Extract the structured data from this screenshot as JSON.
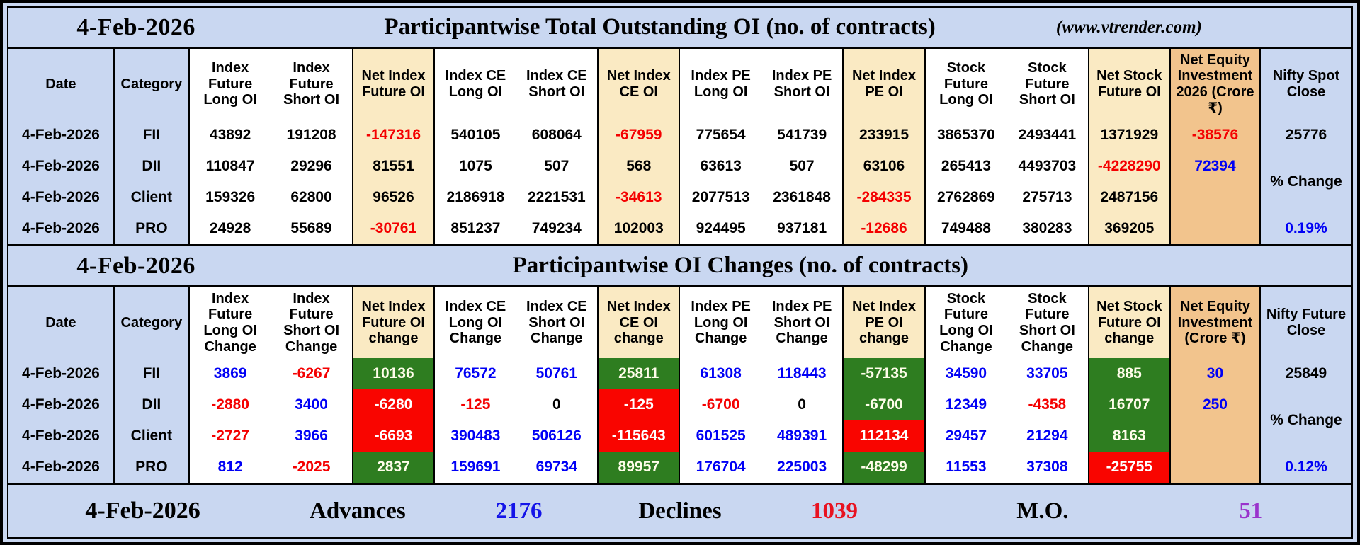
{
  "colors": {
    "page_background": "#c9d7f1",
    "net_column_bg": "#faeac3",
    "equity_column_bg": "#f2c48d",
    "positive_cell_bg": "#2e7d20",
    "negative_cell_bg": "#f90500",
    "negative_text": "#f40000",
    "positive_text": "#0000f5",
    "mo_text": "#9a33cc"
  },
  "header": {
    "date": "4-Feb-2026",
    "title": "Participantwise Total Outstanding OI (no. of contracts)",
    "site": "(www.vtrender.com)"
  },
  "table1": {
    "columns": [
      {
        "label": "Date",
        "type": "head"
      },
      {
        "label": "Category",
        "type": "head"
      },
      {
        "label": "Index Future Long OI",
        "type": "plain"
      },
      {
        "label": "Index Future Short OI",
        "type": "plain"
      },
      {
        "label": "Net Index Future OI",
        "type": "net"
      },
      {
        "label": "Index CE Long OI",
        "type": "plain"
      },
      {
        "label": "Index CE Short OI",
        "type": "plain"
      },
      {
        "label": "Net Index CE OI",
        "type": "net"
      },
      {
        "label": "Index PE Long OI",
        "type": "plain"
      },
      {
        "label": "Index PE Short OI",
        "type": "plain"
      },
      {
        "label": "Net Index PE OI",
        "type": "net"
      },
      {
        "label": "Stock Future Long OI",
        "type": "plain"
      },
      {
        "label": "Stock Future Short OI",
        "type": "plain"
      },
      {
        "label": "Net Stock Future OI",
        "type": "net"
      },
      {
        "label": "Net Equity Investment 2026 (Crore ₹)",
        "type": "equity"
      },
      {
        "label": "Nifty Spot Close",
        "type": "nifty"
      }
    ],
    "rows": [
      {
        "date": "4-Feb-2026",
        "category": "FII",
        "values": [
          "43892",
          "191208",
          "-147316",
          "540105",
          "608064",
          "-67959",
          "775654",
          "541739",
          "233915",
          "3865370",
          "2493441",
          "1371929"
        ],
        "styles": [
          "k",
          "k",
          "r",
          "k",
          "k",
          "r",
          "k",
          "k",
          "k",
          "k",
          "k",
          "k"
        ]
      },
      {
        "date": "4-Feb-2026",
        "category": "DII",
        "values": [
          "110847",
          "29296",
          "81551",
          "1075",
          "507",
          "568",
          "63613",
          "507",
          "63106",
          "265413",
          "4493703",
          "-4228290"
        ],
        "styles": [
          "k",
          "k",
          "k",
          "k",
          "k",
          "k",
          "k",
          "k",
          "k",
          "k",
          "k",
          "r"
        ]
      },
      {
        "date": "4-Feb-2026",
        "category": "Client",
        "values": [
          "159326",
          "62800",
          "96526",
          "2186918",
          "2221531",
          "-34613",
          "2077513",
          "2361848",
          "-284335",
          "2762869",
          "275713",
          "2487156"
        ],
        "styles": [
          "k",
          "k",
          "k",
          "k",
          "k",
          "r",
          "k",
          "k",
          "r",
          "k",
          "k",
          "k"
        ]
      },
      {
        "date": "4-Feb-2026",
        "category": "PRO",
        "values": [
          "24928",
          "55689",
          "-30761",
          "851237",
          "749234",
          "102003",
          "924495",
          "937181",
          "-12686",
          "749488",
          "380283",
          "369205"
        ],
        "styles": [
          "k",
          "k",
          "r",
          "k",
          "k",
          "k",
          "k",
          "k",
          "r",
          "k",
          "k",
          "k"
        ]
      }
    ],
    "equity": {
      "values": [
        "-38576",
        "72394"
      ],
      "styles": [
        "r",
        "b"
      ]
    },
    "nifty": {
      "close": "25776",
      "change_label": "% Change",
      "change_value": "0.19%"
    }
  },
  "section2": {
    "date": "4-Feb-2026",
    "title": "Participantwise OI Changes (no. of contracts)"
  },
  "table2": {
    "columns": [
      {
        "label": "Date",
        "type": "head"
      },
      {
        "label": "Category",
        "type": "head"
      },
      {
        "label": "Index Future Long OI Change",
        "type": "plain"
      },
      {
        "label": "Index Future Short OI Change",
        "type": "plain"
      },
      {
        "label": "Net Index Future OI change",
        "type": "net"
      },
      {
        "label": "Index CE Long OI Change",
        "type": "plain"
      },
      {
        "label": "Index CE Short OI Change",
        "type": "plain"
      },
      {
        "label": "Net Index CE OI change",
        "type": "net"
      },
      {
        "label": "Index PE Long OI Change",
        "type": "plain"
      },
      {
        "label": "Index PE Short OI Change",
        "type": "plain"
      },
      {
        "label": "Net Index PE OI change",
        "type": "net"
      },
      {
        "label": "Stock Future Long OI Change",
        "type": "plain"
      },
      {
        "label": "Stock Future Short OI Change",
        "type": "plain"
      },
      {
        "label": "Net Stock Future OI change",
        "type": "net"
      },
      {
        "label": "Net Equity Investment (Crore ₹)",
        "type": "equity"
      },
      {
        "label": "Nifty Future Close",
        "type": "nifty"
      }
    ],
    "rows": [
      {
        "date": "4-Feb-2026",
        "category": "FII",
        "values": [
          "3869",
          "-6267",
          "10136",
          "76572",
          "50761",
          "25811",
          "61308",
          "118443",
          "-57135",
          "34590",
          "33705",
          "885"
        ],
        "styles": [
          "b",
          "r",
          "G",
          "b",
          "b",
          "G",
          "b",
          "b",
          "G",
          "b",
          "b",
          "G"
        ]
      },
      {
        "date": "4-Feb-2026",
        "category": "DII",
        "values": [
          "-2880",
          "3400",
          "-6280",
          "-125",
          "0",
          "-125",
          "-6700",
          "0",
          "-6700",
          "12349",
          "-4358",
          "16707"
        ],
        "styles": [
          "r",
          "b",
          "R",
          "r",
          "k",
          "R",
          "r",
          "k",
          "G",
          "b",
          "r",
          "G"
        ]
      },
      {
        "date": "4-Feb-2026",
        "category": "Client",
        "values": [
          "-2727",
          "3966",
          "-6693",
          "390483",
          "506126",
          "-115643",
          "601525",
          "489391",
          "112134",
          "29457",
          "21294",
          "8163"
        ],
        "styles": [
          "r",
          "b",
          "R",
          "b",
          "b",
          "R",
          "b",
          "b",
          "R",
          "b",
          "b",
          "G"
        ]
      },
      {
        "date": "4-Feb-2026",
        "category": "PRO",
        "values": [
          "812",
          "-2025",
          "2837",
          "159691",
          "69734",
          "89957",
          "176704",
          "225003",
          "-48299",
          "11553",
          "37308",
          "-25755"
        ],
        "styles": [
          "b",
          "r",
          "G",
          "b",
          "b",
          "G",
          "b",
          "b",
          "G",
          "b",
          "b",
          "R"
        ]
      }
    ],
    "equity": {
      "values": [
        "30",
        "250"
      ],
      "styles": [
        "b",
        "b"
      ]
    },
    "nifty": {
      "close": "25849",
      "change_label": "% Change",
      "change_value": "0.12%"
    }
  },
  "footer": {
    "date": "4-Feb-2026",
    "advances_label": "Advances",
    "advances_value": "2176",
    "declines_label": "Declines",
    "declines_value": "1039",
    "mo_label": "M.O.",
    "mo_value": "51"
  }
}
